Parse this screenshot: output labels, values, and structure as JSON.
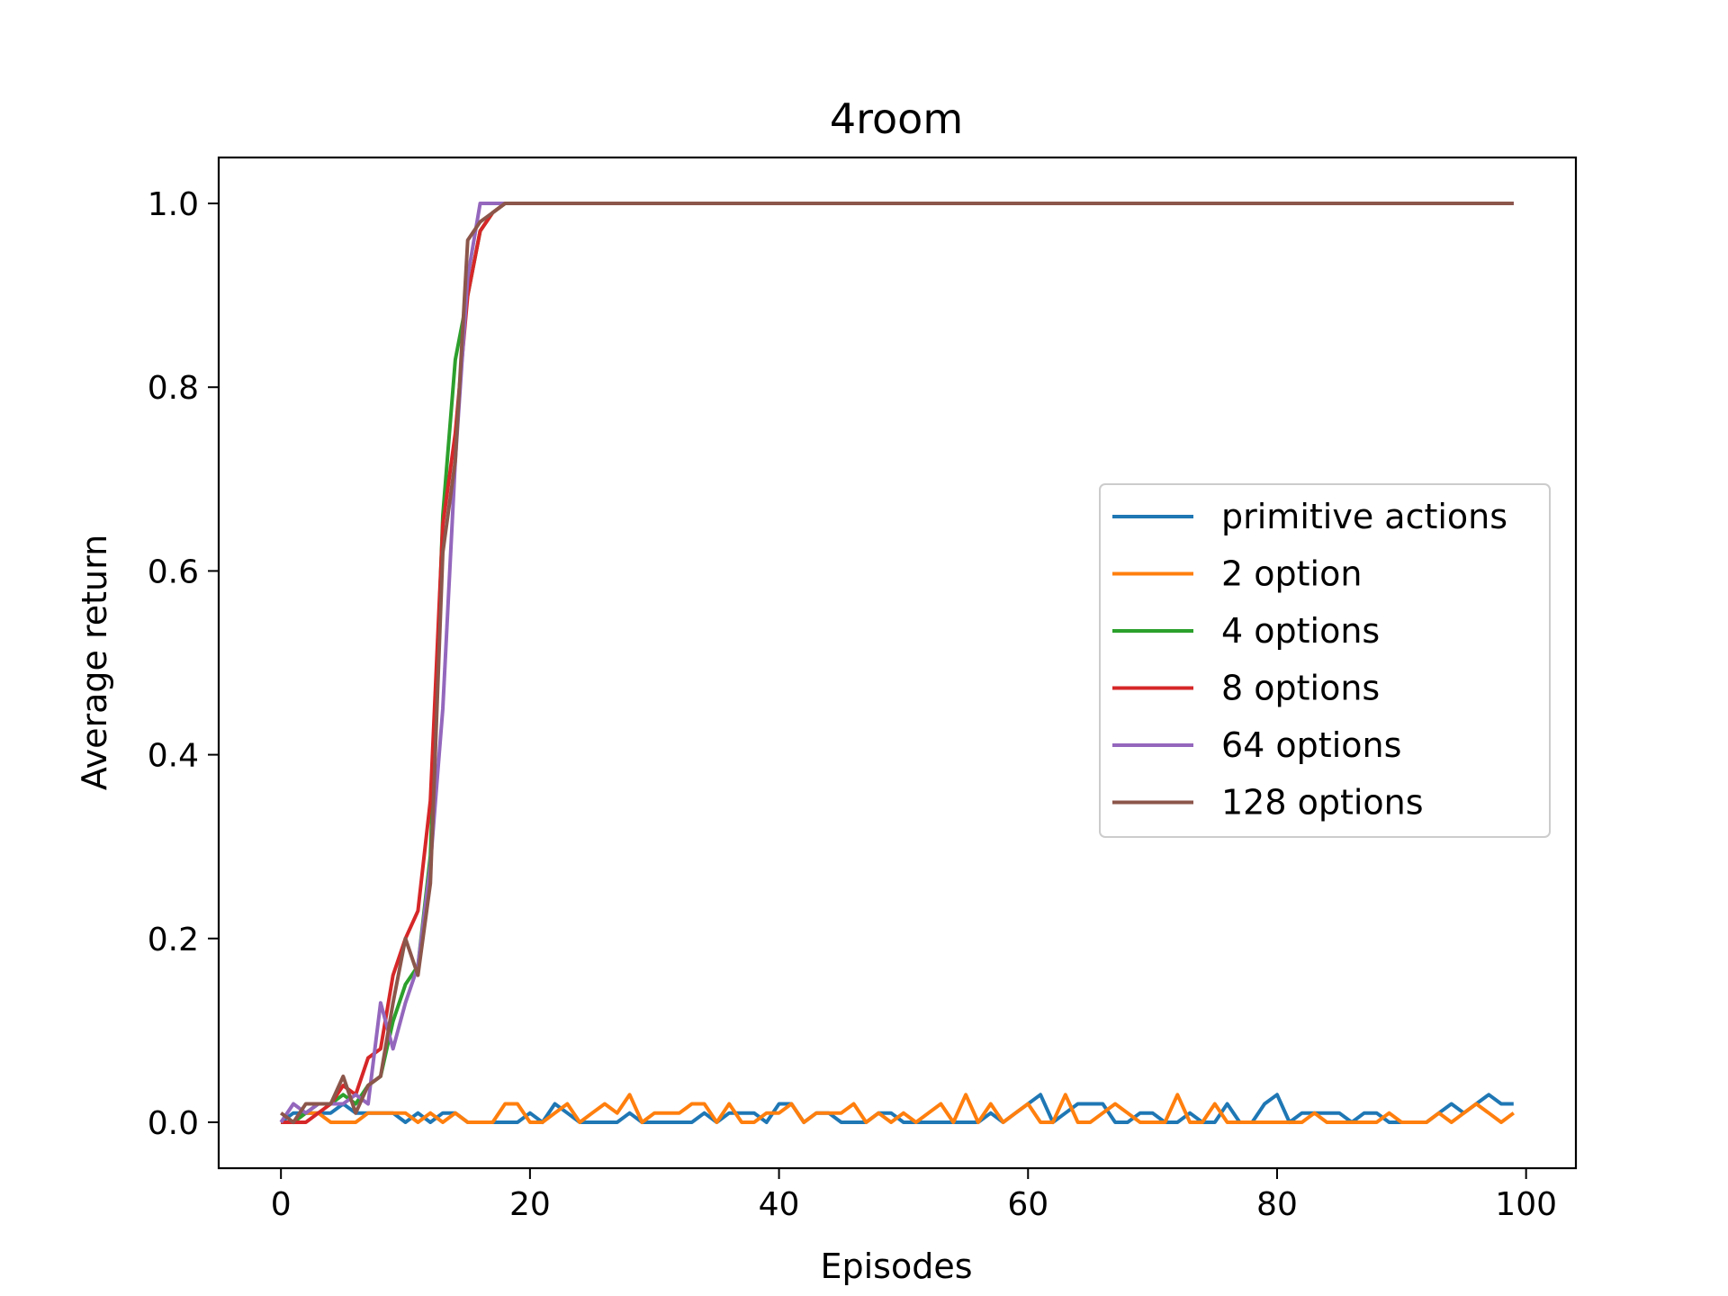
{
  "chart_data": {
    "type": "line",
    "title": "4room",
    "xlabel": "Episodes",
    "ylabel": "Average return",
    "xlim": [
      -5,
      104
    ],
    "ylim": [
      -0.05,
      1.05
    ],
    "xticks": [
      0,
      20,
      40,
      60,
      80,
      100
    ],
    "yticks": [
      0.0,
      0.2,
      0.4,
      0.6,
      0.8,
      1.0
    ],
    "xtick_labels": [
      "0",
      "20",
      "40",
      "60",
      "80",
      "100"
    ],
    "ytick_labels": [
      "0.0",
      "0.2",
      "0.4",
      "0.6",
      "0.8",
      "1.0"
    ],
    "grid": false,
    "legend_position": "center-right",
    "series": [
      {
        "name": "primitive actions",
        "color": "#1f77b4",
        "x": [
          0,
          1,
          2,
          3,
          4,
          5,
          6,
          7,
          8,
          9,
          10,
          11,
          12,
          13,
          14,
          15,
          16,
          17,
          18,
          19,
          20,
          21,
          22,
          23,
          24,
          25,
          26,
          27,
          28,
          29,
          30,
          31,
          32,
          33,
          34,
          35,
          36,
          37,
          38,
          39,
          40,
          41,
          42,
          43,
          44,
          45,
          46,
          47,
          48,
          49,
          50,
          51,
          52,
          53,
          54,
          55,
          56,
          57,
          58,
          59,
          60,
          61,
          62,
          63,
          64,
          65,
          66,
          67,
          68,
          69,
          70,
          71,
          72,
          73,
          74,
          75,
          76,
          77,
          78,
          79,
          80,
          81,
          82,
          83,
          84,
          85,
          86,
          87,
          88,
          89,
          90,
          91,
          92,
          93,
          94,
          95,
          96,
          97,
          98,
          99
        ],
        "y": [
          0,
          0.01,
          0.01,
          0.01,
          0.01,
          0.02,
          0.01,
          0.01,
          0.01,
          0.01,
          0,
          0.01,
          0,
          0.01,
          0.01,
          0,
          0,
          0,
          0,
          0,
          0.01,
          0,
          0.02,
          0.01,
          0,
          0,
          0,
          0,
          0.01,
          0,
          0,
          0,
          0,
          0,
          0.01,
          0,
          0.01,
          0.01,
          0.01,
          0,
          0.02,
          0.02,
          0,
          0.01,
          0.01,
          0,
          0,
          0,
          0.01,
          0.01,
          0,
          0,
          0,
          0,
          0,
          0,
          0,
          0.01,
          0,
          0.01,
          0.02,
          0.03,
          0,
          0.01,
          0.02,
          0.02,
          0.02,
          0,
          0,
          0.01,
          0.01,
          0,
          0,
          0.01,
          0,
          0,
          0.02,
          0,
          0,
          0.02,
          0.03,
          0,
          0.01,
          0.01,
          0.01,
          0.01,
          0,
          0.01,
          0.01,
          0,
          0,
          0,
          0,
          0.01,
          0.02,
          0.01,
          0.02,
          0.03,
          0.02,
          0.02
        ]
      },
      {
        "name": "2 option",
        "color": "#ff7f0e",
        "x": [
          0,
          1,
          2,
          3,
          4,
          5,
          6,
          7,
          8,
          9,
          10,
          11,
          12,
          13,
          14,
          15,
          16,
          17,
          18,
          19,
          20,
          21,
          22,
          23,
          24,
          25,
          26,
          27,
          28,
          29,
          30,
          31,
          32,
          33,
          34,
          35,
          36,
          37,
          38,
          39,
          40,
          41,
          42,
          43,
          44,
          45,
          46,
          47,
          48,
          49,
          50,
          51,
          52,
          53,
          54,
          55,
          56,
          57,
          58,
          59,
          60,
          61,
          62,
          63,
          64,
          65,
          66,
          67,
          68,
          69,
          70,
          71,
          72,
          73,
          74,
          75,
          76,
          77,
          78,
          79,
          80,
          81,
          82,
          83,
          84,
          85,
          86,
          87,
          88,
          89,
          90,
          91,
          92,
          93,
          94,
          95,
          96,
          97,
          98,
          99
        ],
        "y": [
          0,
          0,
          0.01,
          0.01,
          0,
          0,
          0,
          0.01,
          0.01,
          0.01,
          0.01,
          0,
          0.01,
          0,
          0.01,
          0,
          0,
          0,
          0.02,
          0.02,
          0,
          0,
          0.01,
          0.02,
          0,
          0.01,
          0.02,
          0.01,
          0.03,
          0,
          0.01,
          0.01,
          0.01,
          0.02,
          0.02,
          0,
          0.02,
          0,
          0,
          0.01,
          0.01,
          0.02,
          0,
          0.01,
          0.01,
          0.01,
          0.02,
          0,
          0.01,
          0,
          0.01,
          0,
          0.01,
          0.02,
          0,
          0.03,
          0,
          0.02,
          0,
          0.01,
          0.02,
          0,
          0,
          0.03,
          0,
          0,
          0.01,
          0.02,
          0.01,
          0,
          0,
          0,
          0.03,
          0,
          0,
          0.02,
          0,
          0,
          0,
          0,
          0,
          0,
          0,
          0.01,
          0,
          0,
          0,
          0,
          0,
          0.01,
          0,
          0,
          0,
          0.01,
          0,
          0.01,
          0.02,
          0.01,
          0,
          0.01
        ]
      },
      {
        "name": "4 options",
        "color": "#2ca02c",
        "x": [
          0,
          1,
          2,
          3,
          4,
          5,
          6,
          7,
          8,
          9,
          10,
          11,
          12,
          13,
          14,
          15,
          16,
          17,
          18,
          99
        ],
        "y": [
          0,
          0,
          0.01,
          0.02,
          0.02,
          0.03,
          0.02,
          0.04,
          0.05,
          0.11,
          0.15,
          0.17,
          0.29,
          0.66,
          0.83,
          0.9,
          0.97,
          0.99,
          1,
          1
        ]
      },
      {
        "name": "8 options",
        "color": "#d62728",
        "x": [
          0,
          1,
          2,
          3,
          4,
          5,
          6,
          7,
          8,
          9,
          10,
          11,
          12,
          13,
          14,
          15,
          16,
          17,
          18,
          99
        ],
        "y": [
          0,
          0,
          0,
          0.01,
          0.02,
          0.04,
          0.03,
          0.07,
          0.08,
          0.16,
          0.2,
          0.23,
          0.35,
          0.65,
          0.75,
          0.9,
          0.97,
          0.99,
          1,
          1
        ]
      },
      {
        "name": "64 options",
        "color": "#9467bd",
        "x": [
          0,
          1,
          2,
          3,
          4,
          5,
          6,
          7,
          8,
          9,
          10,
          11,
          12,
          13,
          14,
          15,
          16,
          17,
          18,
          99
        ],
        "y": [
          0,
          0.02,
          0.01,
          0.02,
          0.02,
          0.02,
          0.03,
          0.02,
          0.13,
          0.08,
          0.13,
          0.17,
          0.28,
          0.45,
          0.72,
          0.92,
          1,
          1,
          1,
          1
        ]
      },
      {
        "name": "128 options",
        "color": "#8c564b",
        "x": [
          0,
          1,
          2,
          3,
          4,
          5,
          6,
          7,
          8,
          9,
          10,
          11,
          12,
          13,
          14,
          15,
          16,
          17,
          18,
          99
        ],
        "y": [
          0.01,
          0,
          0.02,
          0.02,
          0.02,
          0.05,
          0.01,
          0.04,
          0.05,
          0.13,
          0.2,
          0.16,
          0.26,
          0.62,
          0.72,
          0.96,
          0.98,
          0.99,
          1,
          1
        ]
      }
    ]
  }
}
